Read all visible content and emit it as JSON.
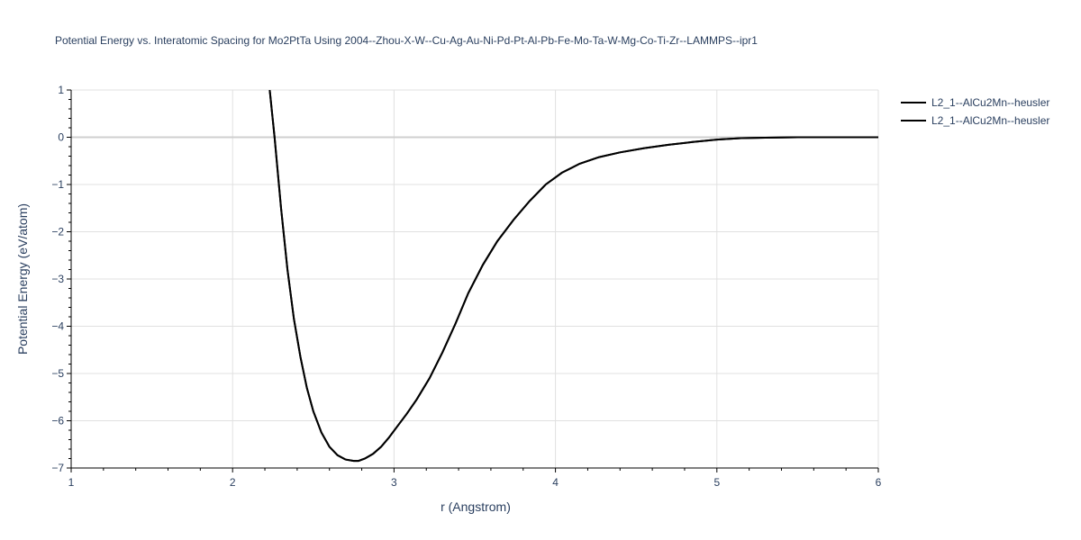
{
  "chart_data": {
    "type": "line",
    "title": "Potential Energy vs. Interatomic Spacing for Mo2PtTa Using 2004--Zhou-X-W--Cu-Ag-Au-Ni-Pd-Pt-Al-Pb-Fe-Mo-Ta-W-Mg-Co-Ti-Zr--LAMMPS--ipr1",
    "xlabel": "r (Angstrom)",
    "ylabel": "Potential Energy (eV/atom)",
    "xlim": [
      1,
      6
    ],
    "ylim": [
      -7,
      1
    ],
    "x_ticks": [
      "1",
      "2",
      "3",
      "4",
      "5",
      "6"
    ],
    "y_ticks": [
      "1",
      "0",
      "−1",
      "−2",
      "−3",
      "−4",
      "−5",
      "−6",
      "−7"
    ],
    "grid": true,
    "legend_position": "top-right",
    "series": [
      {
        "name": "L2_1--AlCu2Mn--heusler",
        "color": "#000000",
        "x": [
          2.23,
          2.26,
          2.3,
          2.34,
          2.38,
          2.42,
          2.46,
          2.5,
          2.55,
          2.6,
          2.65,
          2.7,
          2.75,
          2.78,
          2.82,
          2.87,
          2.92,
          2.97,
          3.02,
          3.08,
          3.14,
          3.22,
          3.3,
          3.38,
          3.46,
          3.55,
          3.64,
          3.74,
          3.84,
          3.94,
          4.04,
          4.15,
          4.27,
          4.4,
          4.55,
          4.7,
          4.85,
          5.0,
          5.15,
          5.3,
          5.5,
          5.75,
          6.0
        ],
        "y": [
          1.0,
          0.0,
          -1.5,
          -2.8,
          -3.85,
          -4.65,
          -5.3,
          -5.8,
          -6.25,
          -6.55,
          -6.73,
          -6.82,
          -6.85,
          -6.85,
          -6.8,
          -6.7,
          -6.55,
          -6.35,
          -6.12,
          -5.85,
          -5.55,
          -5.1,
          -4.55,
          -3.95,
          -3.3,
          -2.7,
          -2.2,
          -1.75,
          -1.35,
          -1.0,
          -0.75,
          -0.56,
          -0.42,
          -0.32,
          -0.23,
          -0.16,
          -0.1,
          -0.05,
          -0.02,
          -0.01,
          0.0,
          0.0,
          0.0
        ]
      },
      {
        "name": "L2_1--AlCu2Mn--heusler",
        "color": "#000000",
        "x": [
          2.23,
          2.26,
          2.3,
          2.34,
          2.38,
          2.42,
          2.46,
          2.5,
          2.55,
          2.6,
          2.65,
          2.7,
          2.75,
          2.78,
          2.82,
          2.87,
          2.92,
          2.97,
          3.02,
          3.08,
          3.14,
          3.22,
          3.3,
          3.38,
          3.46,
          3.55,
          3.64,
          3.74,
          3.84,
          3.94,
          4.04,
          4.15,
          4.27,
          4.4,
          4.55,
          4.7,
          4.85,
          5.0,
          5.15,
          5.3,
          5.5,
          5.75,
          6.0
        ],
        "y": [
          1.0,
          0.0,
          -1.5,
          -2.8,
          -3.85,
          -4.65,
          -5.3,
          -5.8,
          -6.25,
          -6.55,
          -6.73,
          -6.82,
          -6.85,
          -6.85,
          -6.8,
          -6.7,
          -6.55,
          -6.35,
          -6.12,
          -5.85,
          -5.55,
          -5.1,
          -4.55,
          -3.95,
          -3.3,
          -2.7,
          -2.2,
          -1.75,
          -1.35,
          -1.0,
          -0.75,
          -0.56,
          -0.42,
          -0.32,
          -0.23,
          -0.16,
          -0.1,
          -0.05,
          -0.02,
          -0.01,
          0.0,
          0.0,
          0.0
        ]
      }
    ]
  }
}
